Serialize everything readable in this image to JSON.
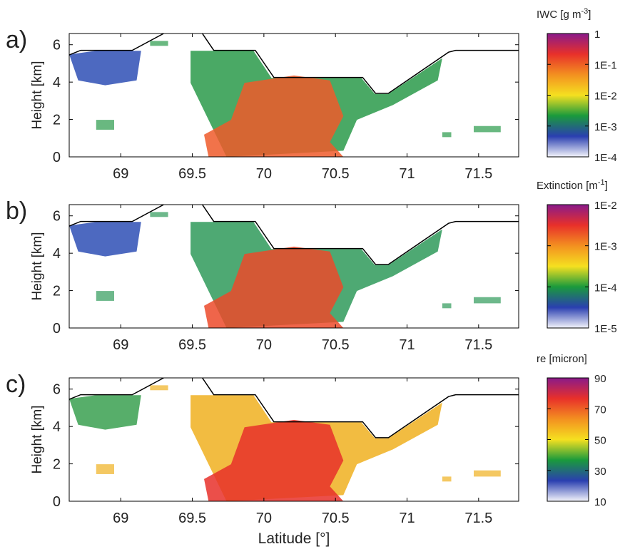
{
  "chart_data": [
    {
      "type": "curtain",
      "panel_label": "a)",
      "ylabel": "Height [km]",
      "xlim": [
        68.64,
        71.78
      ],
      "ylim": [
        0,
        6.6
      ],
      "xticks": [
        69,
        69.5,
        70,
        70.5,
        71,
        71.5
      ],
      "yticks": [
        0,
        2,
        4,
        6
      ],
      "series": [
        {
          "color": "#000000",
          "x": [
            68.64,
            68.72,
            69.08,
            69.3,
            null,
            69.57,
            69.65,
            69.94,
            70.07,
            70.69,
            70.78,
            70.87,
            71.29,
            71.34,
            71.78
          ],
          "values": [
            5.45,
            5.7,
            5.7,
            6.6,
            null,
            6.6,
            5.7,
            5.7,
            4.25,
            4.25,
            3.4,
            3.4,
            5.6,
            5.7,
            5.7
          ]
        }
      ],
      "colorbar": {
        "label": "IWC [g m",
        "label_sup": "-3",
        "label_end": "]",
        "log": true,
        "clim": [
          0.0001,
          1
        ],
        "ticks": [
          1,
          {
            "value": 0.1,
            "label": "1E-1"
          },
          {
            "value": 0.01,
            "label": "1E-2"
          },
          {
            "value": 0.001,
            "label": "1E-3"
          },
          {
            "value": 0.0001,
            "label": "1E-4"
          }
        ],
        "colors": [
          "#f4f4fb",
          "#2a3fb0",
          "#1a9a3c",
          "#f5e020",
          "#f39020",
          "#e8302a",
          "#8a1a8a"
        ]
      },
      "fill_colors": [
        "#2e4fb5",
        "#2a9a4a",
        "#ef5a2a"
      ]
    },
    {
      "type": "curtain",
      "panel_label": "b)",
      "ylabel": "Height [km]",
      "xlim": [
        68.64,
        71.78
      ],
      "ylim": [
        0,
        6.6
      ],
      "xticks": [
        69,
        69.5,
        70,
        70.5,
        71,
        71.5
      ],
      "yticks": [
        0,
        2,
        4,
        6
      ],
      "series": [
        {
          "color": "#000000",
          "x": [
            68.64,
            68.72,
            69.08,
            69.3,
            null,
            69.57,
            69.65,
            69.94,
            70.07,
            70.69,
            70.78,
            70.87,
            71.29,
            71.34,
            71.78
          ],
          "values": [
            5.45,
            5.7,
            5.7,
            6.6,
            null,
            6.6,
            5.7,
            5.7,
            4.25,
            4.25,
            3.4,
            3.4,
            5.6,
            5.7,
            5.7
          ]
        }
      ],
      "colorbar": {
        "label": "Extinction [m",
        "label_sup": "-1",
        "label_end": "]",
        "log": true,
        "clim": [
          1e-05,
          0.01
        ],
        "ticks": [
          {
            "value": 0.01,
            "label": "1E-2"
          },
          {
            "value": 0.001,
            "label": "1E-3"
          },
          {
            "value": 0.0001,
            "label": "1E-4"
          },
          {
            "value": 1e-05,
            "label": "1E-5"
          }
        ],
        "colors": [
          "#f4f4fb",
          "#2a3fb0",
          "#1a9a3c",
          "#f5e020",
          "#f39020",
          "#e8302a",
          "#8a1a8a"
        ]
      },
      "fill_colors": [
        "#2e4fb5",
        "#2f9a5a",
        "#ec4a2a"
      ]
    },
    {
      "type": "curtain",
      "panel_label": "c)",
      "ylabel": "Height [km]",
      "xlabel": "Latitude [°]",
      "xlim": [
        68.64,
        71.78
      ],
      "ylim": [
        0,
        6.6
      ],
      "xticks": [
        69,
        69.5,
        70,
        70.5,
        71,
        71.5
      ],
      "yticks": [
        0,
        2,
        4,
        6
      ],
      "series": [
        {
          "color": "#000000",
          "x": [
            68.64,
            68.72,
            69.08,
            69.3,
            null,
            69.57,
            69.65,
            69.94,
            70.07,
            70.69,
            70.78,
            70.87,
            71.29,
            71.34,
            71.78
          ],
          "values": [
            5.45,
            5.7,
            5.7,
            6.6,
            null,
            6.6,
            5.7,
            5.7,
            4.25,
            4.25,
            3.4,
            3.4,
            5.6,
            5.7,
            5.7
          ]
        }
      ],
      "colorbar": {
        "label": "re [micron]",
        "log": false,
        "clim": [
          10,
          90
        ],
        "ticks": [
          90,
          70,
          50,
          30,
          10
        ],
        "colors": [
          "#f4f4fb",
          "#2a3fb0",
          "#1a9a3c",
          "#f5e020",
          "#f39020",
          "#e8302a",
          "#8a1a8a"
        ]
      },
      "fill_colors": [
        "#3aa050",
        "#f0b020",
        "#e8302a"
      ]
    }
  ]
}
